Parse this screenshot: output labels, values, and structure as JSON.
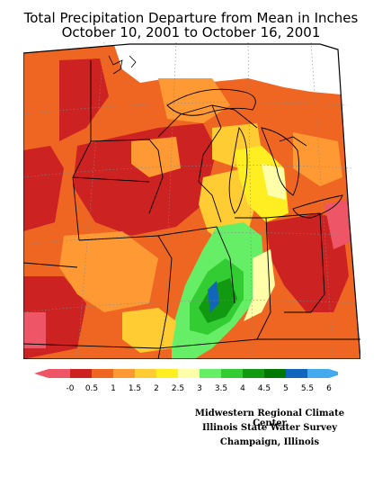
{
  "title_line1": "Total Precipitation Departure from Mean in Inches",
  "title_line2": "October 10, 2001 to October 16, 2001",
  "legend": {
    "labels": [
      "-0",
      "0.5",
      "1",
      "1.5",
      "2",
      "2.5",
      "3",
      "3.5",
      "4",
      "4.5",
      "5",
      "5.5",
      "6"
    ],
    "colors": [
      "#ee5566",
      "#cc2222",
      "#ee6622",
      "#ff9933",
      "#ffcc33",
      "#ffee22",
      "#ffffaa",
      "#66ee66",
      "#33cc33",
      "#119911",
      "#007700",
      "#1166bb",
      "#44aaee"
    ]
  },
  "credits": {
    "line1": "Midwestern Regional Climate Center",
    "line2": "Illinois State Water Survey",
    "line3": "Champaign, Illinois"
  }
}
